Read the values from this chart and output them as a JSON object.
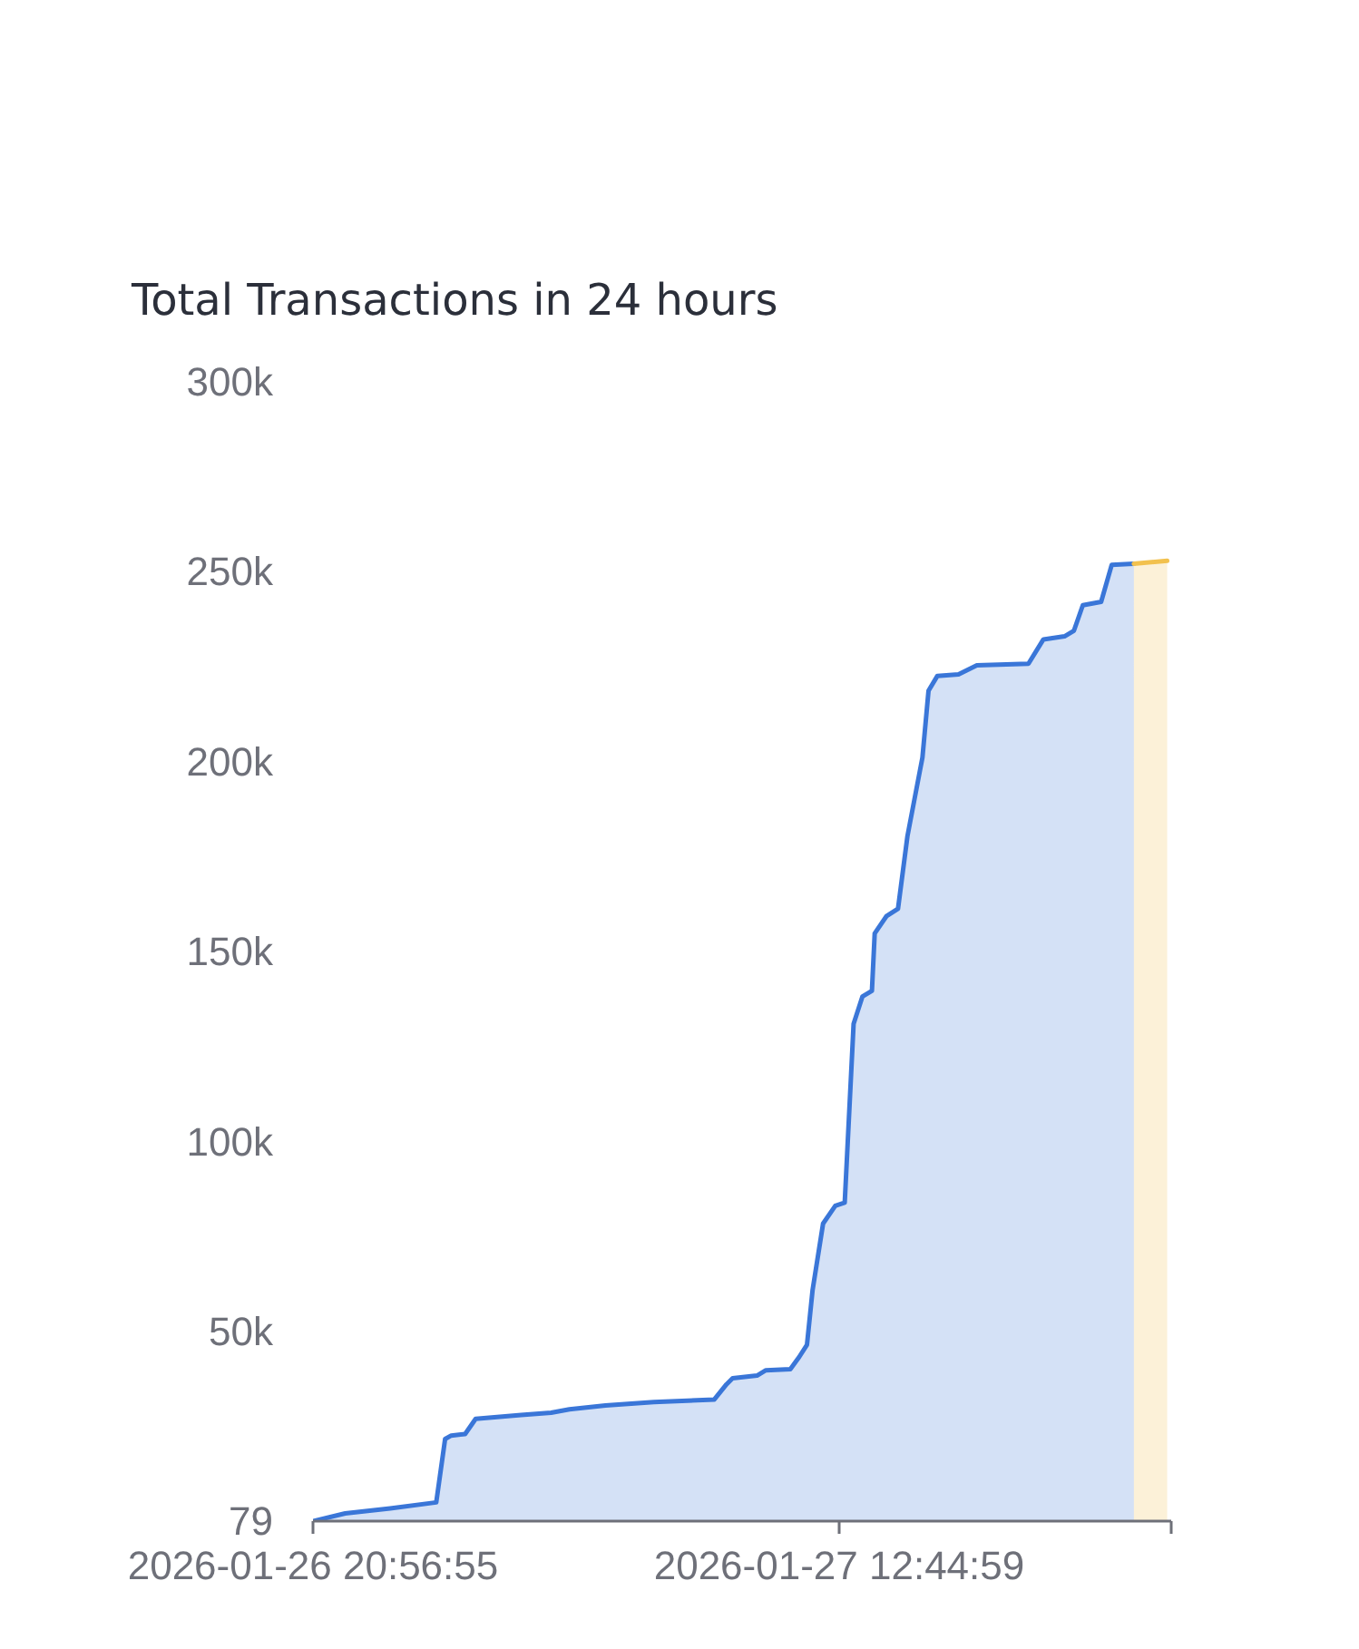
{
  "chart_data": {
    "type": "area",
    "title": "Total Transactions in 24 hours",
    "xlim": [
      "2026-01-26T20:56:55",
      "2026-01-27T22:43:15"
    ],
    "xticks": [
      {
        "value": "2026-01-26T20:56:55",
        "label": "2026-01-26 20:56:55"
      },
      {
        "value": "2026-01-27T12:44:59",
        "label": "2026-01-27 12:44:59"
      },
      {
        "value": "2026-01-27T22:43:15",
        "label": null
      }
    ],
    "ylim": [
      79,
      300000
    ],
    "yticks": [
      79,
      {
        "value": 50000,
        "label": "50k"
      },
      {
        "value": 100000,
        "label": "100k"
      },
      {
        "value": 150000,
        "label": "150k"
      },
      {
        "value": 200000,
        "label": "200k"
      },
      {
        "value": 250000,
        "label": "250k"
      },
      {
        "value": 300000,
        "label": "300k"
      }
    ],
    "series": [
      {
        "color": "#3a76d8",
        "x": [
          "2026-01-26T20:56:55",
          "2026-01-26T21:55",
          "2026-01-26T23:16",
          "2026-01-27T00:39",
          "2026-01-27T00:55",
          "2026-01-27T01:06",
          "2026-01-27T01:31",
          "2026-01-27T01:50",
          "2026-01-27T03:12",
          "2026-01-27T04:06",
          "2026-01-27T04:39",
          "2026-01-27T05:44",
          "2026-01-27T07:11",
          "2026-01-27T09:00",
          "2026-01-27T09:22",
          "2026-01-27T09:33",
          "2026-01-27T10:17",
          "2026-01-27T10:33",
          "2026-01-27T11:17",
          "2026-01-27T11:33",
          "2026-01-27T11:47",
          "2026-01-27T11:57",
          "2026-01-27T12:16",
          "2026-01-27T12:38",
          "2026-01-27T12:55",
          "2026-01-27T13:11",
          "2026-01-27T13:27",
          "2026-01-27T13:44",
          "2026-01-27T13:49",
          "2026-01-27T14:10",
          "2026-01-27T14:31",
          "2026-01-27T14:48",
          "2026-01-27T15:15",
          "2026-01-27T15:26",
          "2026-01-27T15:42",
          "2026-01-27T16:20",
          "2026-01-27T16:53",
          "2026-01-27T18:26",
          "2026-01-27T18:53",
          "2026-01-27T19:31",
          "2026-01-27T19:48",
          "2026-01-27T20:04",
          "2026-01-27T20:37",
          "2026-01-27T20:56",
          "2026-01-27T21:36"
        ],
        "values": [
          79,
          2100,
          3400,
          5000,
          21700,
          22600,
          23000,
          27000,
          28000,
          28600,
          29500,
          30500,
          31400,
          32100,
          36100,
          37700,
          38400,
          39800,
          40100,
          43300,
          46500,
          60800,
          78400,
          83100,
          83900,
          131000,
          138200,
          139700,
          154800,
          159300,
          161300,
          180400,
          201100,
          218700,
          222600,
          223000,
          225400,
          225800,
          232200,
          233000,
          234500,
          241200,
          242100,
          251800,
          252100
        ]
      },
      {
        "color": "#f2c14e",
        "x": [
          "2026-01-27T21:36",
          "2026-01-27T22:36"
        ],
        "values": [
          252100,
          252900
        ]
      }
    ]
  }
}
